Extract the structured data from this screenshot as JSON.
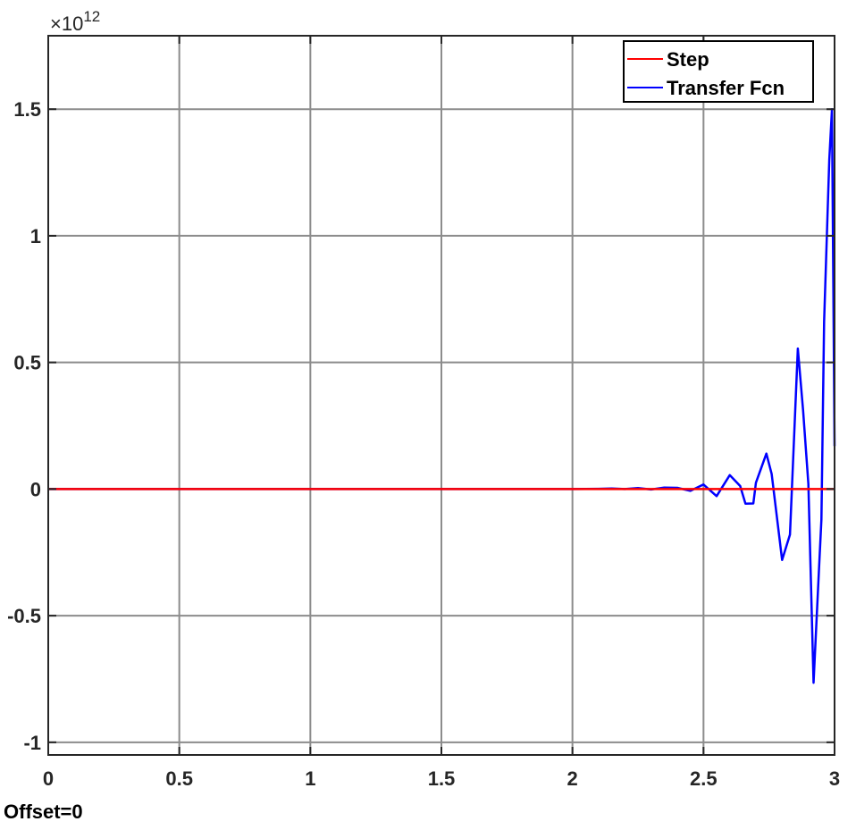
{
  "chart_data": {
    "type": "line",
    "title": "",
    "xlabel": "",
    "ylabel": "",
    "xlim": [
      0,
      3
    ],
    "ylim": [
      -1.05,
      1.79
    ],
    "y_multiplier_text": "×10",
    "y_multiplier_exponent": "12",
    "x_ticks": [
      0,
      0.5,
      1,
      1.5,
      2,
      2.5,
      3
    ],
    "x_tick_labels": [
      "0",
      "0.5",
      "1",
      "1.5",
      "2",
      "2.5",
      "3"
    ],
    "y_ticks": [
      -1,
      -0.5,
      0,
      0.5,
      1,
      1.5
    ],
    "y_tick_labels": [
      "-1",
      "-0.5",
      "0",
      "0.5",
      "1",
      "1.5"
    ],
    "grid": true,
    "legend_position": "top-right",
    "series": [
      {
        "name": "Step",
        "color": "#ff0000",
        "x": [
          0,
          3
        ],
        "y": [
          0,
          0
        ]
      },
      {
        "name": "Transfer Fcn",
        "color": "#0000ff",
        "x": [
          0,
          2.0,
          2.1,
          2.15,
          2.2,
          2.25,
          2.3,
          2.35,
          2.4,
          2.45,
          2.5,
          2.55,
          2.6,
          2.64,
          2.66,
          2.69,
          2.7,
          2.74,
          2.76,
          2.8,
          2.83,
          2.86,
          2.88,
          2.9,
          2.92,
          2.94,
          2.95,
          2.96,
          2.98,
          2.99,
          3.0
        ],
        "y": [
          0,
          0,
          0.001,
          0.002,
          0.0,
          0.004,
          -0.002,
          0.006,
          0.005,
          -0.007,
          0.018,
          -0.028,
          0.055,
          0.012,
          -0.058,
          -0.057,
          0.025,
          0.14,
          0.06,
          -0.28,
          -0.18,
          0.555,
          0.31,
          0.02,
          -0.765,
          -0.33,
          -0.12,
          0.66,
          1.3,
          1.5,
          0.17
        ]
      }
    ]
  },
  "footer": {
    "offset_label": "Offset=0"
  }
}
